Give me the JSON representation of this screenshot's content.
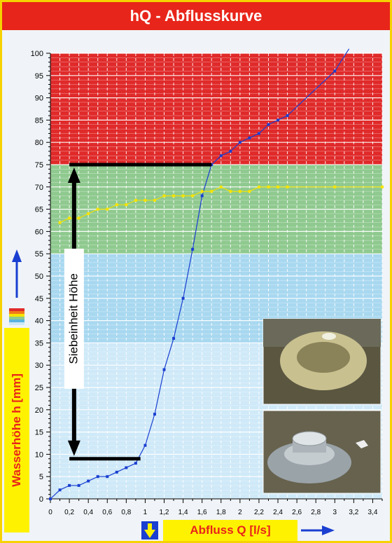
{
  "title": "hQ - Abflusskurve",
  "ylabel": "Wasserhöhe h [mm]",
  "xlabel": "Abfluss Q [l/s]",
  "annotation": "Siebeinheit Höhe",
  "colors": {
    "frame": "#f5d200",
    "title_bg": "#e8251a",
    "zone_red": "#e02a2a",
    "zone_green": "#8fc98f",
    "zone_blue": "#a8d8f0",
    "zone_lightblue": "#cfe9f8",
    "curve_blue": "#1a3fd1",
    "curve_yellow": "#f5e400",
    "arrow": "#1a3fd1"
  },
  "chart_data": {
    "type": "line",
    "title": "hQ - Abflusskurve",
    "xlabel": "Abfluss Q [l/s]",
    "ylabel": "Wasserhöhe h [mm]",
    "xlim": [
      0,
      3.5
    ],
    "ylim": [
      0,
      100
    ],
    "x_ticks": [
      0,
      0.2,
      0.4,
      0.6,
      0.8,
      1,
      1.2,
      1.4,
      1.6,
      1.8,
      2,
      2.2,
      2.4,
      2.6,
      2.8,
      3,
      3.2,
      3.4
    ],
    "x_tick_labels": [
      "0",
      "0,2",
      "0,4",
      "0,6",
      "0,8",
      "1",
      "1,2",
      "1,4",
      "1,6",
      "1,8",
      "2",
      "2,2",
      "2,4",
      "2,6",
      "2,8",
      "3",
      "3,2",
      "3,4"
    ],
    "y_ticks": [
      0,
      5,
      10,
      15,
      20,
      25,
      30,
      35,
      40,
      45,
      50,
      55,
      60,
      65,
      70,
      75,
      80,
      85,
      90,
      95,
      100
    ],
    "zones": [
      {
        "from": 75,
        "to": 100,
        "color": "#e02a2a"
      },
      {
        "from": 55,
        "to": 75,
        "color": "#8fc98f"
      },
      {
        "from": 35,
        "to": 55,
        "color": "#a8d8f0"
      },
      {
        "from": 0,
        "to": 35,
        "color": "#cfe9f8"
      }
    ],
    "grid": true,
    "series": [
      {
        "color": "#1a3fd1",
        "x": [
          0,
          0.1,
          0.2,
          0.3,
          0.4,
          0.5,
          0.6,
          0.7,
          0.8,
          0.9,
          1.0,
          1.1,
          1.2,
          1.3,
          1.4,
          1.5,
          1.6,
          1.7,
          1.8,
          1.9,
          2.0,
          2.1,
          2.2,
          2.3,
          2.4,
          2.5,
          3.0,
          3.15
        ],
        "y": [
          0,
          2,
          3,
          3,
          4,
          5,
          5,
          6,
          7,
          8,
          12,
          19,
          29,
          36,
          45,
          56,
          68,
          75,
          77,
          78,
          80,
          81,
          82,
          84,
          85,
          86,
          96,
          101
        ]
      },
      {
        "color": "#f5e400",
        "x": [
          0.1,
          0.2,
          0.3,
          0.4,
          0.5,
          0.6,
          0.7,
          0.8,
          0.9,
          1.0,
          1.1,
          1.2,
          1.3,
          1.4,
          1.5,
          1.6,
          1.7,
          1.8,
          1.9,
          2.0,
          2.1,
          2.2,
          2.3,
          2.4,
          2.5,
          3.0,
          3.5
        ],
        "y": [
          62,
          63,
          63,
          64,
          65,
          65,
          66,
          66,
          67,
          67,
          67,
          68,
          68,
          68,
          68,
          69,
          69,
          70,
          69,
          69,
          69,
          70,
          70,
          70,
          70,
          70,
          70
        ]
      }
    ],
    "bars": [
      {
        "x_from": 0.2,
        "x_to": 1.7,
        "y": 75
      },
      {
        "x_from": 0.2,
        "x_to": 0.95,
        "y": 9
      }
    ],
    "double_arrow": {
      "x": 0.25,
      "y_from": 9,
      "y_to": 75
    }
  }
}
